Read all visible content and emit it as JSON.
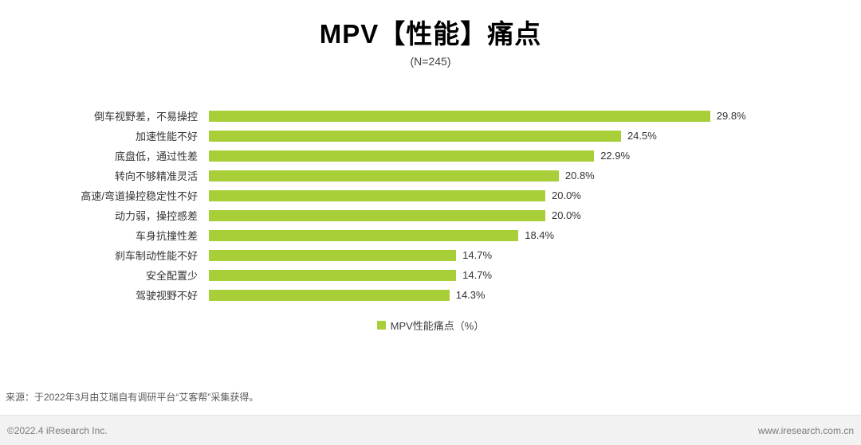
{
  "title": "MPV【性能】痛点",
  "subtitle": "(N=245)",
  "chart_data": {
    "type": "bar",
    "orientation": "horizontal",
    "title": "MPV【性能】痛点",
    "sample_note": "(N=245)",
    "categories": [
      "倒车视野差，不易操控",
      "加速性能不好",
      "底盘低，通过性差",
      "转向不够精准灵活",
      "高速/弯道操控稳定性不好",
      "动力弱，操控感差",
      "车身抗撞性差",
      "刹车制动性能不好",
      "安全配置少",
      "驾驶视野不好"
    ],
    "values": [
      29.8,
      24.5,
      22.9,
      20.8,
      20.0,
      20.0,
      18.4,
      14.7,
      14.7,
      14.3
    ],
    "value_labels": [
      "29.8%",
      "24.5%",
      "22.9%",
      "20.8%",
      "20.0%",
      "20.0%",
      "18.4%",
      "14.7%",
      "14.7%",
      "14.3%"
    ],
    "legend": "MPV性能痛点（%）",
    "bar_color": "#a8ce38",
    "xlim": [
      0,
      32
    ],
    "grid": "off",
    "legend_position": "bottom-center"
  },
  "source": "来源：于2022年3月由艾瑞自有调研平台“艾客帮”采集获得。",
  "footer": {
    "left": "©2022.4 iResearch Inc.",
    "right": "www.iresearch.com.cn"
  }
}
